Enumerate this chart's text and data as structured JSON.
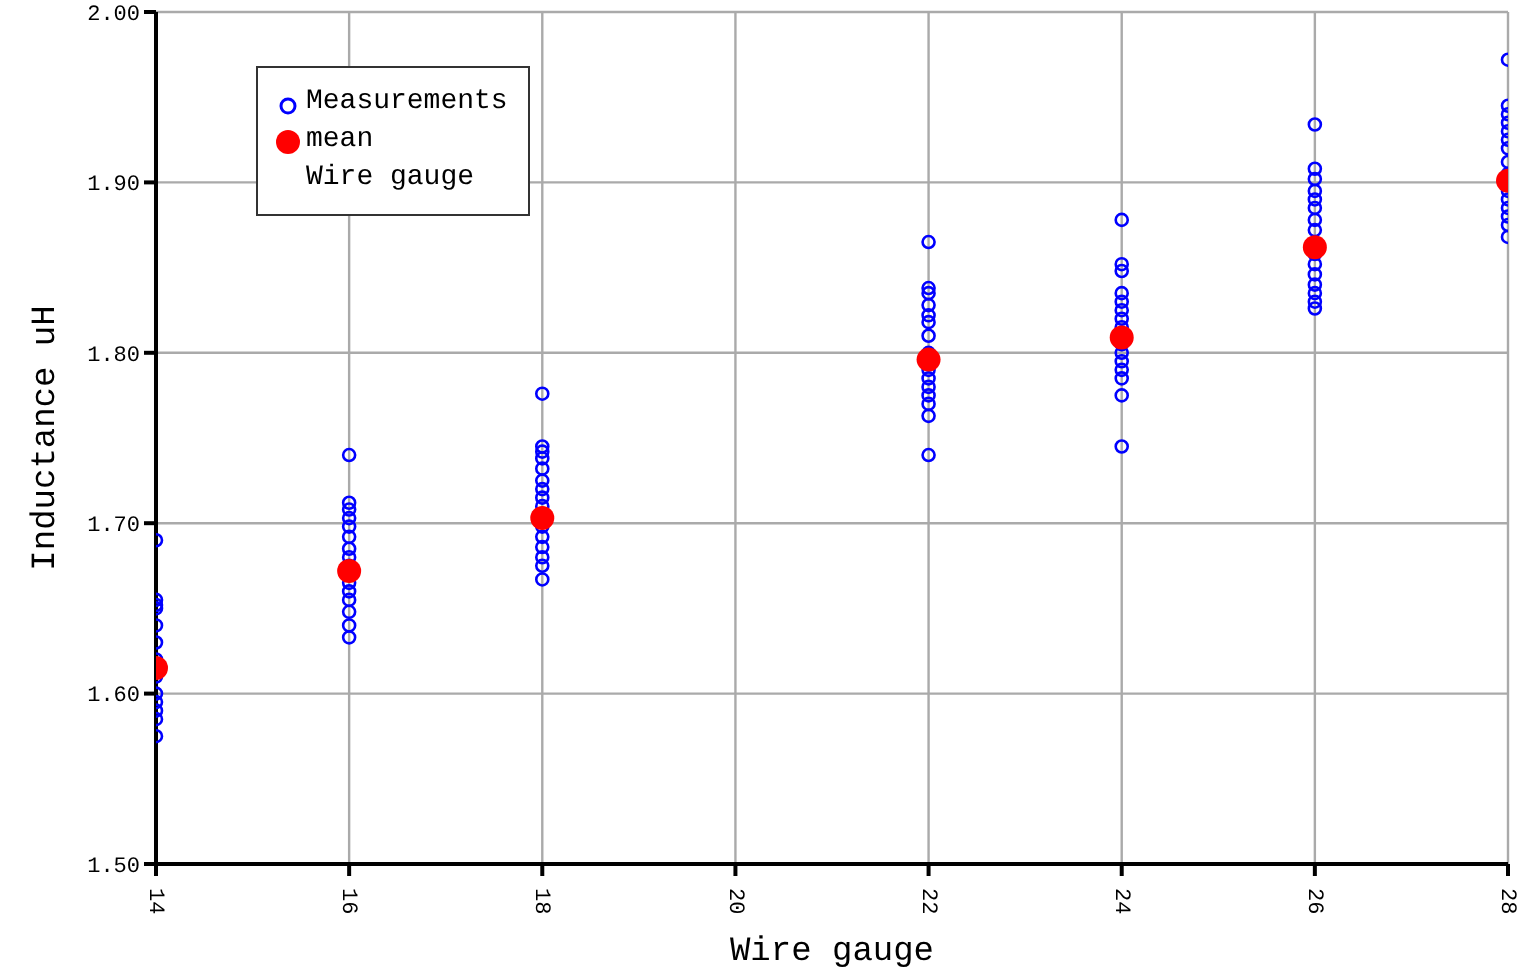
{
  "chart_data": {
    "type": "scatter",
    "xlabel": "Wire gauge",
    "ylabel": "Inductance uH",
    "xlim": [
      14,
      28
    ],
    "xticks": [
      14,
      16,
      18,
      20,
      22,
      24,
      26,
      28
    ],
    "ylim": [
      1.5,
      2.0
    ],
    "yticks": [
      {
        "value": 1.5,
        "label": "1.50"
      },
      {
        "value": 1.6,
        "label": "1.60"
      },
      {
        "value": 1.7,
        "label": "1.70"
      },
      {
        "value": 1.8,
        "label": "1.80"
      },
      {
        "value": 1.9,
        "label": "1.90"
      },
      {
        "value": 2.0,
        "label": "2.00"
      }
    ],
    "grid": true,
    "legend": "top left",
    "marker": "circle",
    "annotations": [
      "Wire gauge"
    ],
    "series": [
      {
        "name": "Measurements",
        "color": "#0000ff",
        "x": [
          14,
          14,
          14,
          14,
          14,
          14,
          14,
          14,
          14,
          14,
          14,
          14,
          14,
          16,
          16,
          16,
          16,
          16,
          16,
          16,
          16,
          16,
          16,
          16,
          16,
          16,
          16,
          16,
          18,
          18,
          18,
          18,
          18,
          18,
          18,
          18,
          18,
          18,
          18,
          18,
          18,
          18,
          18,
          22,
          22,
          22,
          22,
          22,
          22,
          22,
          22,
          22,
          22,
          22,
          22,
          22,
          22,
          22,
          24,
          24,
          24,
          24,
          24,
          24,
          24,
          24,
          24,
          24,
          24,
          24,
          24,
          24,
          24,
          26,
          26,
          26,
          26,
          26,
          26,
          26,
          26,
          26,
          26,
          26,
          26,
          26,
          26,
          26,
          28,
          28,
          28,
          28,
          28,
          28,
          28,
          28,
          28,
          28,
          28,
          28,
          28,
          28,
          28
        ],
        "values": [
          1.69,
          1.655,
          1.652,
          1.65,
          1.64,
          1.63,
          1.62,
          1.61,
          1.6,
          1.595,
          1.59,
          1.585,
          1.575,
          1.74,
          1.712,
          1.708,
          1.703,
          1.698,
          1.692,
          1.685,
          1.68,
          1.675,
          1.665,
          1.66,
          1.655,
          1.648,
          1.64,
          1.633,
          1.776,
          1.745,
          1.742,
          1.738,
          1.732,
          1.725,
          1.72,
          1.715,
          1.71,
          1.698,
          1.692,
          1.686,
          1.68,
          1.675,
          1.667,
          1.865,
          1.838,
          1.835,
          1.828,
          1.822,
          1.818,
          1.81,
          1.8,
          1.79,
          1.785,
          1.78,
          1.775,
          1.77,
          1.763,
          1.74,
          1.878,
          1.852,
          1.848,
          1.835,
          1.83,
          1.825,
          1.82,
          1.815,
          1.805,
          1.8,
          1.795,
          1.79,
          1.785,
          1.775,
          1.745,
          1.934,
          1.908,
          1.902,
          1.895,
          1.89,
          1.885,
          1.878,
          1.872,
          1.858,
          1.852,
          1.846,
          1.84,
          1.835,
          1.83,
          1.826,
          1.972,
          1.945,
          1.94,
          1.935,
          1.93,
          1.925,
          1.92,
          1.912,
          1.905,
          1.895,
          1.89,
          1.885,
          1.88,
          1.875,
          1.868
        ]
      },
      {
        "name": "mean",
        "color": "#ff0000",
        "x": [
          14,
          16,
          18,
          22,
          24,
          26,
          28
        ],
        "values": [
          1.615,
          1.672,
          1.703,
          1.796,
          1.809,
          1.862,
          1.901
        ]
      }
    ]
  }
}
